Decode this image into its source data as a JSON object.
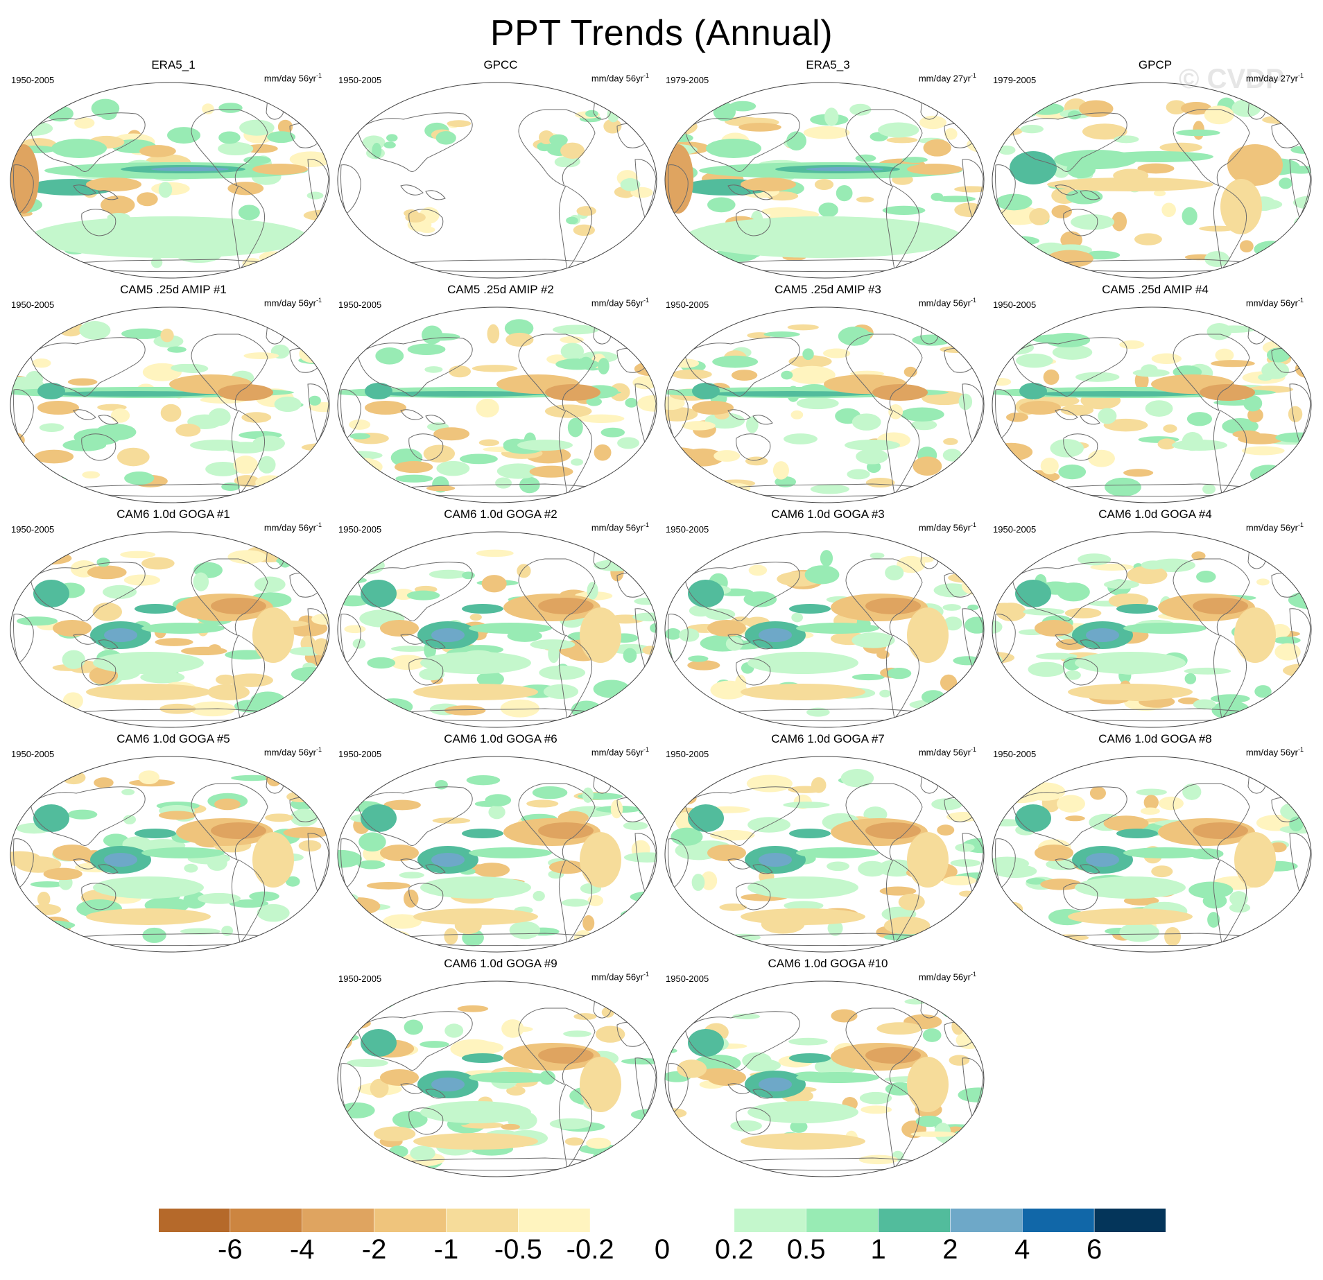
{
  "figure": {
    "title": "PPT Trends (Annual)",
    "watermark": "© CVDP"
  },
  "chart_data": {
    "type": "heatmap",
    "title": "PPT Trends (Annual)",
    "variable": "precipitation trend",
    "projection": "global map (Robinson-like)",
    "panels": [
      {
        "name": "ERA5_1",
        "period": "1950-2005",
        "units": "mm/day 56yr",
        "exp": "-1",
        "pattern": "era5"
      },
      {
        "name": "GPCC",
        "period": "1950-2005",
        "units": "mm/day 56yr",
        "exp": "-1",
        "pattern": "gpcc"
      },
      {
        "name": "ERA5_3",
        "period": "1979-2005",
        "units": "mm/day 27yr",
        "exp": "-1",
        "pattern": "era5"
      },
      {
        "name": "GPCP",
        "period": "1979-2005",
        "units": "mm/day 27yr",
        "exp": "-1",
        "pattern": "gpcp"
      },
      {
        "name": "CAM5 .25d AMIP #1",
        "period": "1950-2005",
        "units": "mm/day 56yr",
        "exp": "-1",
        "pattern": "amip"
      },
      {
        "name": "CAM5 .25d AMIP #2",
        "period": "1950-2005",
        "units": "mm/day 56yr",
        "exp": "-1",
        "pattern": "amip"
      },
      {
        "name": "CAM5 .25d AMIP #3",
        "period": "1950-2005",
        "units": "mm/day 56yr",
        "exp": "-1",
        "pattern": "amip"
      },
      {
        "name": "CAM5 .25d AMIP #4",
        "period": "1950-2005",
        "units": "mm/day 56yr",
        "exp": "-1",
        "pattern": "amip"
      },
      {
        "name": "CAM6 1.0d GOGA #1",
        "period": "1950-2005",
        "units": "mm/day 56yr",
        "exp": "-1",
        "pattern": "goga"
      },
      {
        "name": "CAM6 1.0d GOGA #2",
        "period": "1950-2005",
        "units": "mm/day 56yr",
        "exp": "-1",
        "pattern": "goga"
      },
      {
        "name": "CAM6 1.0d GOGA #3",
        "period": "1950-2005",
        "units": "mm/day 56yr",
        "exp": "-1",
        "pattern": "goga"
      },
      {
        "name": "CAM6 1.0d GOGA #4",
        "period": "1950-2005",
        "units": "mm/day 56yr",
        "exp": "-1",
        "pattern": "goga"
      },
      {
        "name": "CAM6 1.0d GOGA #5",
        "period": "1950-2005",
        "units": "mm/day 56yr",
        "exp": "-1",
        "pattern": "goga"
      },
      {
        "name": "CAM6 1.0d GOGA #6",
        "period": "1950-2005",
        "units": "mm/day 56yr",
        "exp": "-1",
        "pattern": "goga"
      },
      {
        "name": "CAM6 1.0d GOGA #7",
        "period": "1950-2005",
        "units": "mm/day 56yr",
        "exp": "-1",
        "pattern": "goga"
      },
      {
        "name": "CAM6 1.0d GOGA #8",
        "period": "1950-2005",
        "units": "mm/day 56yr",
        "exp": "-1",
        "pattern": "goga"
      },
      {
        "name": "CAM6 1.0d GOGA #9",
        "period": "1950-2005",
        "units": "mm/day 56yr",
        "exp": "-1",
        "pattern": "goga"
      },
      {
        "name": "CAM6 1.0d GOGA #10",
        "period": "1950-2005",
        "units": "mm/day 56yr",
        "exp": "-1",
        "pattern": "goga"
      }
    ],
    "colorbar": {
      "labels": [
        "-6",
        "-4",
        "-2",
        "-1",
        "-0.5",
        "-0.2",
        "0",
        "0.2",
        "0.5",
        "1",
        "2",
        "4",
        "6"
      ],
      "colors": [
        "#b5692a",
        "#cc8540",
        "#dfa460",
        "#efc47c",
        "#f6dc9a",
        "#fff4bf",
        "#ffffff",
        "#ffffff",
        "#c4f7cc",
        "#98ebb4",
        "#52bc9c",
        "#6ea8c8",
        "#1167a8",
        "#04355a"
      ]
    }
  }
}
